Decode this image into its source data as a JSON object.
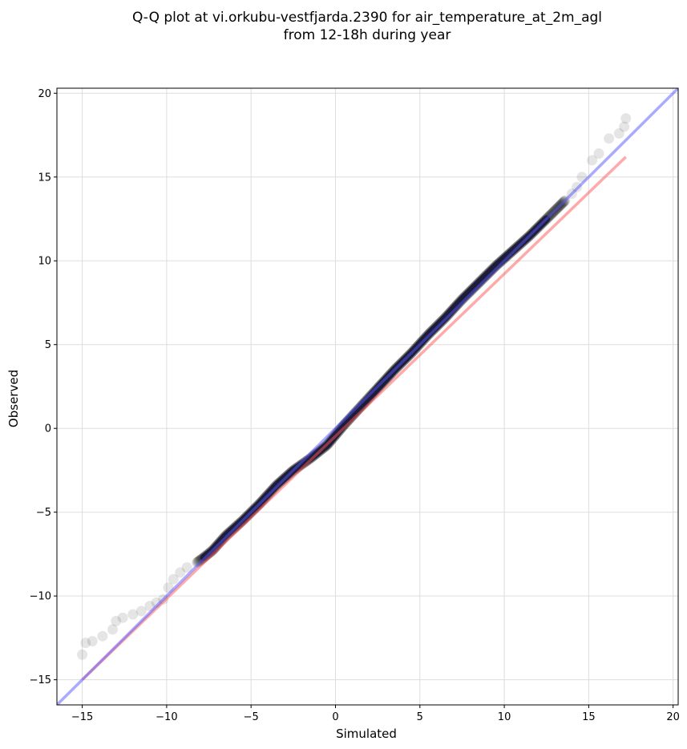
{
  "chart_data": {
    "type": "scatter",
    "title": [
      "Q-Q plot at vi.orkubu-vestfjarda.2390 for air_temperature_at_2m_agl",
      "from 12-18h during year"
    ],
    "xlabel": "Simulated",
    "ylabel": "Observed",
    "xlim": [
      -16.5,
      20.3
    ],
    "ylim": [
      -16.5,
      20.3
    ],
    "xticks": [
      -15,
      -10,
      -5,
      0,
      5,
      10,
      15,
      20
    ],
    "yticks": [
      -15,
      -10,
      -5,
      0,
      5,
      10,
      15,
      20
    ],
    "xtick_labels": [
      "−15",
      "−10",
      "−5",
      "0",
      "5",
      "10",
      "15",
      "20"
    ],
    "ytick_labels": [
      "−15",
      "−10",
      "−5",
      "0",
      "5",
      "10",
      "15",
      "20"
    ],
    "grid": true,
    "legend": false,
    "series": [
      {
        "kind": "quantile-points",
        "color": "#000000",
        "x": [
          -15.0,
          -14.8,
          -14.4,
          -13.8,
          -13.2,
          -13.0,
          -12.6,
          -12.0,
          -11.5,
          -11.0,
          -10.6,
          -10.2,
          -9.9,
          -9.6,
          -9.2,
          -8.8,
          -8.2,
          -7.8,
          -7.3,
          -6.5,
          -5.5,
          -4.5,
          -3.5,
          -2.5,
          -1.5,
          -0.5,
          0.5,
          1.5,
          2.5,
          3.5,
          4.5,
          5.5,
          6.5,
          7.5,
          8.5,
          9.5,
          10.5,
          11.5,
          12.5,
          13.2,
          13.6,
          14.0,
          14.3,
          14.6,
          15.2,
          15.6,
          16.2,
          16.8,
          17.1,
          17.2
        ],
        "y": [
          -13.5,
          -12.8,
          -12.7,
          -12.4,
          -12.0,
          -11.5,
          -11.3,
          -11.1,
          -10.9,
          -10.6,
          -10.4,
          -10.2,
          -9.5,
          -9.0,
          -8.6,
          -8.3,
          -8.0,
          -7.7,
          -7.3,
          -6.4,
          -5.5,
          -4.5,
          -3.4,
          -2.5,
          -1.8,
          -1.0,
          0.2,
          1.3,
          2.4,
          3.5,
          4.5,
          5.6,
          6.6,
          7.7,
          8.7,
          9.7,
          10.6,
          11.5,
          12.5,
          13.2,
          13.6,
          14.0,
          14.4,
          15.0,
          16.0,
          16.4,
          17.3,
          17.6,
          18.0,
          18.5
        ]
      },
      {
        "kind": "line",
        "color": "#ff5555",
        "x": [
          -15.0,
          17.2
        ],
        "y": [
          -15.0,
          16.2
        ]
      },
      {
        "kind": "line",
        "color": "#5555ff",
        "x": [
          -16.5,
          20.3
        ],
        "y": [
          -16.5,
          20.3
        ]
      }
    ]
  }
}
